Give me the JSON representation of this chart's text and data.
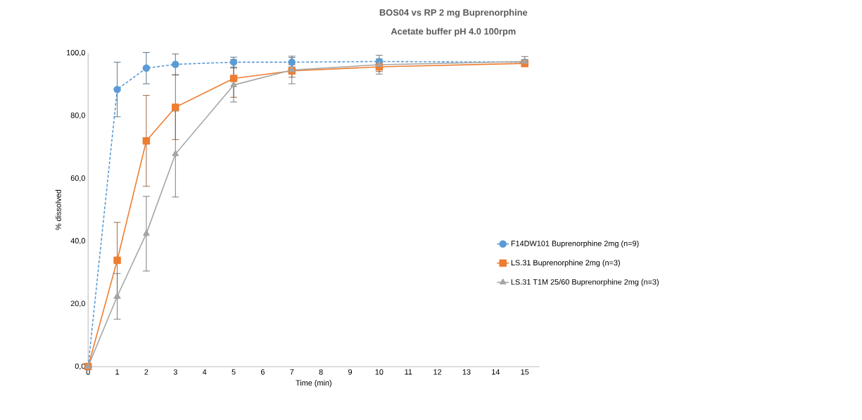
{
  "chart_data": {
    "type": "line",
    "title": "BOS04 vs RP 2 mg Buprenorphine",
    "subtitle": "Acetate buffer pH 4.0 100rpm",
    "xlabel": "Time (min)",
    "ylabel": "% dissolved",
    "xlim": [
      0,
      15.5
    ],
    "xticks": [
      0,
      1,
      2,
      3,
      4,
      5,
      6,
      7,
      8,
      9,
      10,
      11,
      12,
      13,
      14,
      15
    ],
    "ylim": [
      0,
      100
    ],
    "yticks": [
      {
        "value": 0,
        "label": "0,0"
      },
      {
        "value": 20,
        "label": "20,0"
      },
      {
        "value": 40,
        "label": "40,0"
      },
      {
        "value": 60,
        "label": "60,0"
      },
      {
        "value": 80,
        "label": "80,0"
      },
      {
        "value": 100,
        "label": "100,0"
      }
    ],
    "grid": false,
    "legend": "right",
    "x": [
      0,
      1,
      2,
      3,
      5,
      7,
      10,
      15
    ],
    "series": [
      {
        "name": "F14DW101 Buprenorphine  2mg (n=9)",
        "color": "#5b9bd5",
        "marker": "circle",
        "line_style": "dashed",
        "values": [
          0,
          88.4,
          95.2,
          96.4,
          97.1,
          97.1,
          97.3,
          97.1
        ],
        "errors": [
          null,
          8.7,
          5,
          3.3,
          1.6,
          1.5,
          0.8,
          0.8
        ]
      },
      {
        "name": "LS.31 Buprenorphine  2mg (n=3)",
        "color": "#ed7d31",
        "marker": "square",
        "line_style": "solid",
        "values": [
          0,
          33.9,
          72.0,
          82.7,
          91.9,
          94.3,
          95.6,
          96.7
        ],
        "errors": [
          null,
          12.1,
          14.5,
          10.3,
          6,
          2,
          1.5,
          1
        ]
      },
      {
        "name": "LS.31 T1M 25/60 Buprenorphine  2mg (n=3)",
        "color": "#a5a5a5",
        "marker": "triangle",
        "line_style": "solid",
        "values": [
          0,
          22.4,
          42.4,
          67.8,
          89.8,
          94.6,
          96.3,
          97.3
        ],
        "errors": [
          null,
          7.3,
          11.9,
          13.7,
          5.4,
          4.4,
          3,
          1.6
        ]
      }
    ]
  }
}
